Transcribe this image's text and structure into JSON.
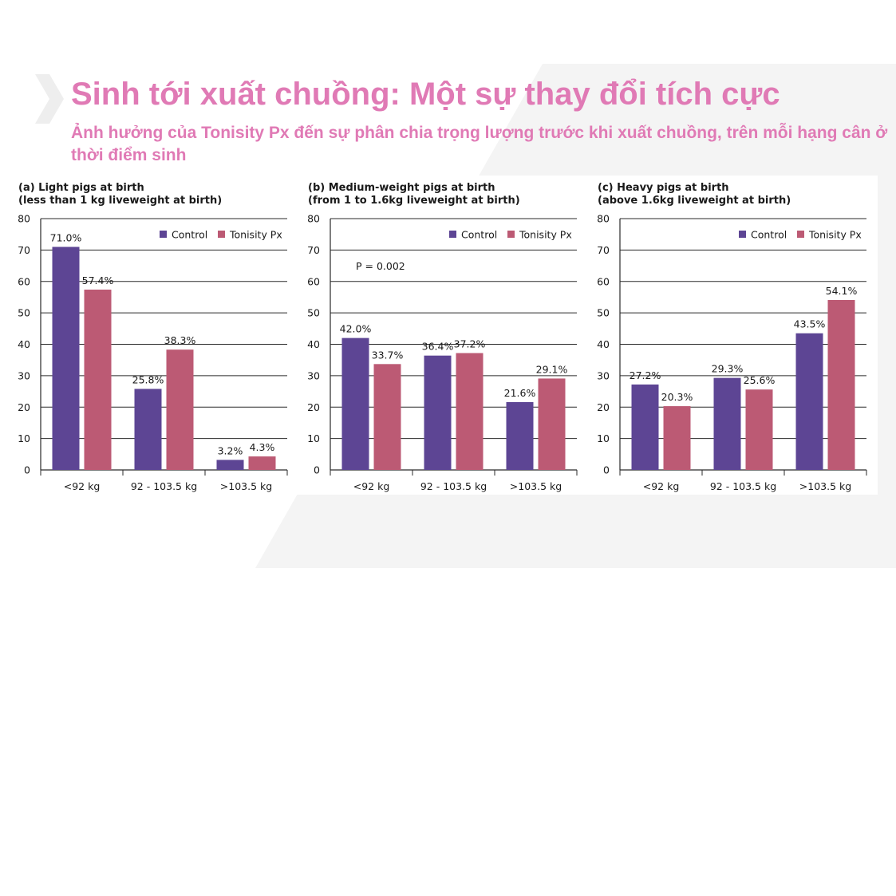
{
  "header": {
    "title": "Sinh tới xuất chuồng: Một sự thay đổi tích cực",
    "subtitle": "Ảnh hưởng của Tonisity Px đến sự phân chia trọng lượng trước khi xuất chuồng, trên mỗi hạng cân ở thời điểm sinh"
  },
  "colors": {
    "title": "#e07ab5",
    "control": "#5d4594",
    "tonisity": "#bc5a74",
    "background_shape": "#f4f4f4"
  },
  "chart_data": [
    {
      "type": "bar",
      "title_line1": "(a) Light pigs at birth",
      "title_line2": "(less than 1 kg liveweight at birth)",
      "categories": [
        "<92 kg",
        "92 - 103.5 kg",
        ">103.5 kg"
      ],
      "series": [
        {
          "name": "Control",
          "values": [
            71.0,
            25.8,
            3.2
          ],
          "labels": [
            "71.0%",
            "25.8%",
            "3.2%"
          ]
        },
        {
          "name": "Tonisity Px",
          "values": [
            57.4,
            38.3,
            4.3
          ],
          "labels": [
            "57.4%",
            "38.3%",
            "4.3%"
          ]
        }
      ],
      "annotation": "",
      "ylim": [
        0,
        80
      ],
      "yticks": [
        "0",
        "10",
        "20",
        "30",
        "40",
        "50",
        "60",
        "70",
        "80"
      ],
      "grid": true,
      "legend": "top-right"
    },
    {
      "type": "bar",
      "title_line1": "(b) Medium-weight pigs at birth",
      "title_line2": "(from 1 to 1.6kg liveweight at birth)",
      "categories": [
        "<92 kg",
        "92 - 103.5 kg",
        ">103.5 kg"
      ],
      "series": [
        {
          "name": "Control",
          "values": [
            42.0,
            36.4,
            21.6
          ],
          "labels": [
            "42.0%",
            "36.4%",
            "21.6%"
          ]
        },
        {
          "name": "Tonisity Px",
          "values": [
            33.7,
            37.2,
            29.1
          ],
          "labels": [
            "33.7%",
            "37.2%",
            "29.1%"
          ]
        }
      ],
      "annotation": "P = 0.002",
      "ylim": [
        0,
        80
      ],
      "yticks": [
        "0",
        "10",
        "20",
        "30",
        "40",
        "50",
        "60",
        "70",
        "80"
      ],
      "grid": true,
      "legend": "top-right"
    },
    {
      "type": "bar",
      "title_line1": "(c) Heavy pigs at birth",
      "title_line2": "(above 1.6kg liveweight at birth)",
      "categories": [
        "<92 kg",
        "92 - 103.5 kg",
        ">103.5 kg"
      ],
      "series": [
        {
          "name": "Control",
          "values": [
            27.2,
            29.3,
            43.5
          ],
          "labels": [
            "27.2%",
            "29.3%",
            "43.5%"
          ]
        },
        {
          "name": "Tonisity Px",
          "values": [
            20.3,
            25.6,
            54.1
          ],
          "labels": [
            "20.3%",
            "25.6%",
            "54.1%"
          ]
        }
      ],
      "annotation": "",
      "ylim": [
        0,
        80
      ],
      "yticks": [
        "0",
        "10",
        "20",
        "30",
        "40",
        "50",
        "60",
        "70",
        "80"
      ],
      "grid": true,
      "legend": "top-right"
    }
  ]
}
